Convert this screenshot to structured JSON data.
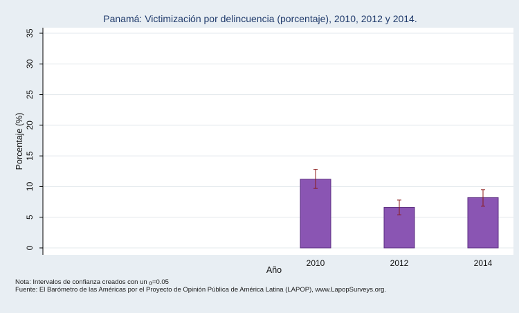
{
  "chart_data": {
    "type": "bar",
    "title": "Panamá: Victimización por delincuencia (porcentaje), 2010, 2012 y 2014.",
    "xlabel": "Año",
    "ylabel": "Porcentaje (%)",
    "categories": [
      "2010",
      "2012",
      "2014"
    ],
    "values": [
      11.2,
      6.6,
      8.2
    ],
    "ci_lower": [
      9.7,
      5.4,
      6.8
    ],
    "ci_upper": [
      12.8,
      7.8,
      9.5
    ],
    "ylim": [
      0,
      36
    ],
    "yticks": [
      "0",
      "5",
      "10",
      "15",
      "20",
      "25",
      "30",
      "35"
    ],
    "grid": true,
    "colors": {
      "bar": "#8a55b3",
      "bar_edge": "#5b2d80",
      "error_bar": "#8b1a1a",
      "plot_bg": "#ffffff",
      "grid": "#e3e8ec"
    }
  },
  "notes": {
    "ci_prefix": "Nota: Intervalos de confianza creados con un ",
    "alpha_symbol": "α",
    "ci_suffix": "=0.05",
    "source": "Fuente: El Barómetro de las Américas por el Proyecto de Opinión Pública de América Latina (LAPOP), www.LapopSurveys.org."
  }
}
